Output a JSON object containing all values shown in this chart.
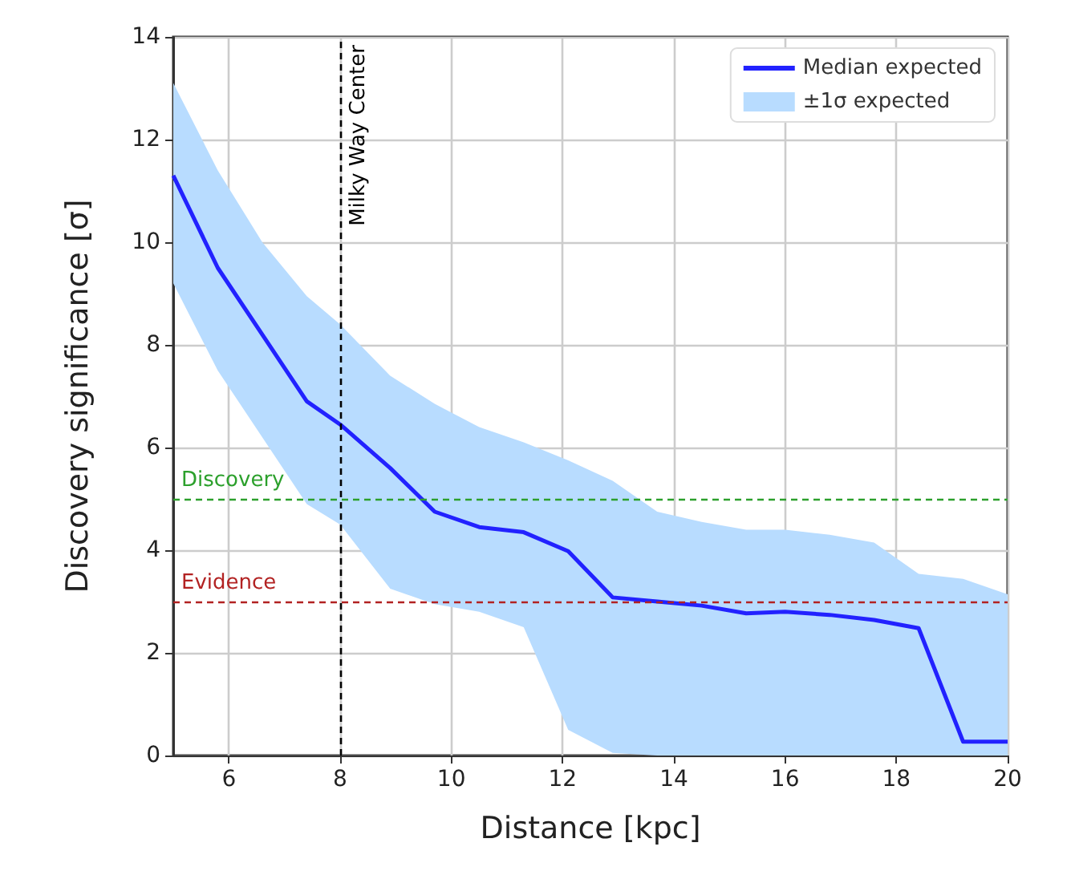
{
  "chart_data": {
    "type": "line",
    "xlabel": "Distance [kpc]",
    "ylabel": "Discovery significance [σ]",
    "x": [
      5,
      5.8,
      6.6,
      7.4,
      8,
      8.9,
      9.7,
      10.5,
      11.3,
      12.1,
      12.9,
      13.7,
      14.5,
      15.3,
      16,
      16.8,
      17.6,
      18.4,
      19.2,
      20
    ],
    "series": [
      {
        "name": "Median expected",
        "color": "#2222ff",
        "values": [
          11.3,
          9.5,
          8.2,
          6.9,
          6.45,
          5.6,
          4.75,
          4.45,
          4.35,
          3.98,
          3.08,
          3.0,
          2.92,
          2.77,
          2.8,
          2.74,
          2.64,
          2.48,
          0.27,
          0.27
        ]
      },
      {
        "name": "±1σ expected",
        "type": "area",
        "color": "#b8dcff",
        "values": [
          null,
          null,
          null,
          null,
          null,
          null,
          null,
          null,
          null,
          null,
          null,
          null,
          null,
          null,
          null,
          null,
          null,
          null,
          null,
          null
        ],
        "lower": [
          9.2,
          7.5,
          6.2,
          4.9,
          4.5,
          3.25,
          2.95,
          2.8,
          2.5,
          0.5,
          0.05,
          0,
          0,
          0,
          0,
          0,
          0,
          0,
          0,
          0
        ],
        "upper": [
          13.1,
          11.4,
          10.0,
          8.95,
          8.4,
          7.4,
          6.85,
          6.4,
          6.1,
          5.75,
          5.35,
          4.75,
          4.55,
          4.4,
          4.4,
          4.3,
          4.15,
          3.54,
          3.44,
          3.14
        ]
      }
    ],
    "xlim": [
      5,
      20
    ],
    "xticks": [
      6,
      8,
      10,
      12,
      14,
      16,
      18,
      20
    ],
    "ylim": [
      0,
      14
    ],
    "yticks": [
      0,
      2,
      4,
      6,
      8,
      10,
      12,
      14
    ],
    "ref_lines": [
      {
        "axis": "y",
        "value": 5,
        "label": "Discovery",
        "color": "#2ca02c",
        "line_style": "dashed"
      },
      {
        "axis": "y",
        "value": 3,
        "label": "Evidence",
        "color": "#b22222",
        "line_style": "dashed"
      },
      {
        "axis": "x",
        "value": 8,
        "label": "Milky Way Center",
        "color": "#000000",
        "line_style": "dashed"
      }
    ],
    "grid": true,
    "legend": "top right",
    "marker": "none",
    "line_style": "solid"
  }
}
